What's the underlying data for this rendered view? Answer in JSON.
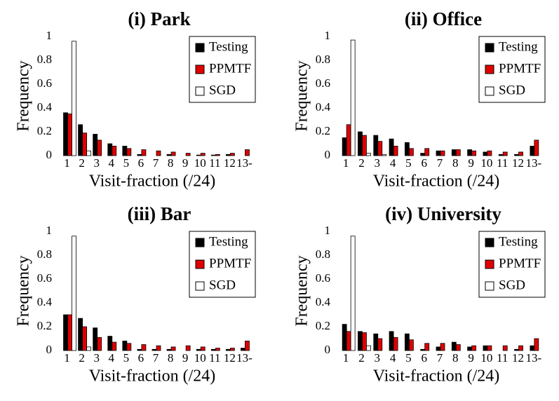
{
  "chart_data": [
    {
      "type": "bar",
      "title": "(i) Park",
      "xlabel": "Visit-fraction (/24)",
      "ylabel": "Frequency",
      "categories": [
        "1",
        "2",
        "3",
        "4",
        "5",
        "6",
        "7",
        "8",
        "9",
        "10",
        "11",
        "12",
        "13-"
      ],
      "series": [
        {
          "name": "Testing",
          "color": "#000000",
          "values": [
            0.36,
            0.26,
            0.18,
            0.1,
            0.08,
            0.01,
            0,
            0.01,
            0,
            0.005,
            0.005,
            0.01,
            0
          ]
        },
        {
          "name": "PPMTF",
          "color": "#e00000",
          "values": [
            0.35,
            0.19,
            0.13,
            0.08,
            0.06,
            0.05,
            0.04,
            0.03,
            0.02,
            0.02,
            0.01,
            0.02,
            0.05
          ]
        },
        {
          "name": "SGD",
          "color": "#ffffff",
          "values": [
            0.96,
            0.04,
            0,
            0,
            0,
            0,
            0,
            0,
            0,
            0,
            0,
            0,
            0
          ]
        }
      ],
      "ylim": [
        0,
        1
      ],
      "yticks": [
        0,
        0.2,
        0.4,
        0.6,
        0.8,
        1
      ],
      "legend": "upper right"
    },
    {
      "type": "bar",
      "title": "(ii) Office",
      "xlabel": "Visit-fraction (/24)",
      "ylabel": "Frequency",
      "categories": [
        "1",
        "2",
        "3",
        "4",
        "5",
        "6",
        "7",
        "8",
        "9",
        "10",
        "11",
        "12",
        "13-"
      ],
      "series": [
        {
          "name": "Testing",
          "color": "#000000",
          "values": [
            0.15,
            0.2,
            0.17,
            0.14,
            0.11,
            0.02,
            0.04,
            0.05,
            0.05,
            0.03,
            0.01,
            0.01,
            0.08
          ]
        },
        {
          "name": "PPMTF",
          "color": "#e00000",
          "values": [
            0.26,
            0.17,
            0.12,
            0.08,
            0.06,
            0.06,
            0.04,
            0.05,
            0.04,
            0.04,
            0.03,
            0.03,
            0.13
          ]
        },
        {
          "name": "SGD",
          "color": "#ffffff",
          "values": [
            0.97,
            0.02,
            0.01,
            0,
            0,
            0,
            0,
            0,
            0,
            0,
            0,
            0,
            0
          ]
        }
      ],
      "ylim": [
        0,
        1
      ],
      "yticks": [
        0,
        0.2,
        0.4,
        0.6,
        0.8,
        1
      ],
      "legend": "upper right"
    },
    {
      "type": "bar",
      "title": "(iii) Bar",
      "xlabel": "Visit-fraction (/24)",
      "ylabel": "Frequency",
      "categories": [
        "1",
        "2",
        "3",
        "4",
        "5",
        "6",
        "7",
        "8",
        "9",
        "10",
        "11",
        "12",
        "13-"
      ],
      "series": [
        {
          "name": "Testing",
          "color": "#000000",
          "values": [
            0.3,
            0.27,
            0.19,
            0.12,
            0.08,
            0.01,
            0.01,
            0.01,
            0,
            0.01,
            0.01,
            0.01,
            0.02
          ]
        },
        {
          "name": "PPMTF",
          "color": "#e00000",
          "values": [
            0.3,
            0.2,
            0.11,
            0.07,
            0.06,
            0.05,
            0.04,
            0.03,
            0.04,
            0.03,
            0.02,
            0.02,
            0.08
          ]
        },
        {
          "name": "SGD",
          "color": "#ffffff",
          "values": [
            0.96,
            0.03,
            0,
            0,
            0,
            0,
            0,
            0,
            0,
            0,
            0,
            0,
            0
          ]
        }
      ],
      "ylim": [
        0,
        1
      ],
      "yticks": [
        0,
        0.2,
        0.4,
        0.6,
        0.8,
        1
      ],
      "legend": "upper right"
    },
    {
      "type": "bar",
      "title": "(iv) University",
      "xlabel": "Visit-fraction (/24)",
      "ylabel": "Frequency",
      "categories": [
        "1",
        "2",
        "3",
        "4",
        "5",
        "6",
        "7",
        "8",
        "9",
        "10",
        "11",
        "12",
        "13-"
      ],
      "series": [
        {
          "name": "Testing",
          "color": "#000000",
          "values": [
            0.22,
            0.16,
            0.14,
            0.16,
            0.14,
            0.01,
            0.03,
            0.07,
            0.03,
            0.04,
            0,
            0.01,
            0.04
          ]
        },
        {
          "name": "PPMTF",
          "color": "#e00000",
          "values": [
            0.16,
            0.15,
            0.1,
            0.11,
            0.09,
            0.06,
            0.06,
            0.05,
            0.04,
            0.04,
            0.04,
            0.04,
            0.1
          ]
        },
        {
          "name": "SGD",
          "color": "#ffffff",
          "values": [
            0.96,
            0.04,
            0,
            0,
            0,
            0,
            0,
            0,
            0,
            0,
            0,
            0,
            0
          ]
        }
      ],
      "ylim": [
        0,
        1
      ],
      "yticks": [
        0,
        0.2,
        0.4,
        0.6,
        0.8,
        1
      ],
      "legend": "upper right"
    }
  ]
}
